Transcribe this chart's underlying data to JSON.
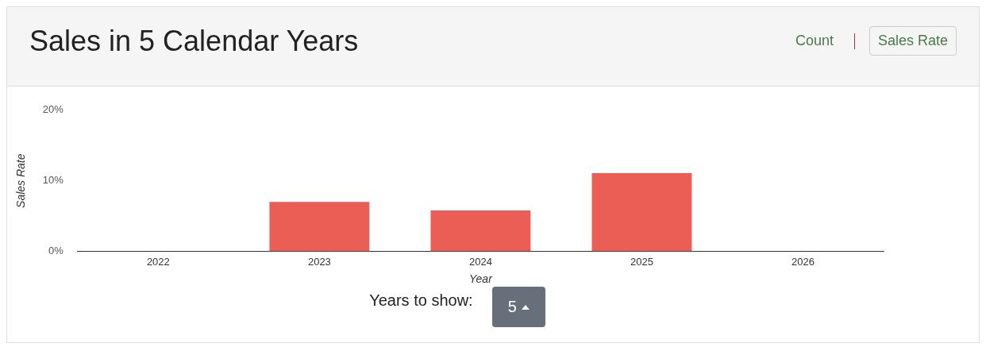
{
  "chart_data": {
    "type": "bar",
    "title": "Sales in 5 Calendar Years",
    "categories": [
      "2022",
      "2023",
      "2024",
      "2025",
      "2026"
    ],
    "values": [
      0,
      7.0,
      5.8,
      11.1,
      0
    ],
    "color": "#eb5e55",
    "xlabel": "Year",
    "ylabel": "Sales Rate",
    "ylim": [
      0,
      20
    ],
    "yticks": [
      {
        "value": 0,
        "label": "0%"
      },
      {
        "value": 10,
        "label": "10%"
      },
      {
        "value": 20,
        "label": "20%"
      }
    ],
    "grid": false,
    "legend": false,
    "annotations": [
      "Count",
      "Sales Rate",
      "Years to show:",
      "5"
    ]
  }
}
